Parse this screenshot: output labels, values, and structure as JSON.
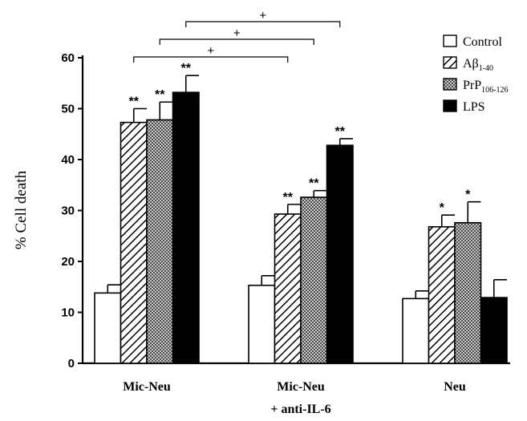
{
  "chart_data": {
    "type": "bar",
    "ylabel": "% Cell death",
    "ylim": [
      0,
      60
    ],
    "yticks": [
      0,
      10,
      20,
      30,
      40,
      50,
      60
    ],
    "groups": [
      {
        "label_lines": [
          "Mic-Neu"
        ]
      },
      {
        "label_lines": [
          "Mic-Neu",
          "+ anti-IL-6"
        ]
      },
      {
        "label_lines": [
          "Neu"
        ]
      }
    ],
    "series": [
      {
        "name": "Control",
        "name_sub": "",
        "pattern": "white",
        "values": [
          13.8,
          15.3,
          12.7
        ],
        "errors": [
          1.6,
          1.9,
          1.5
        ],
        "significance": [
          "",
          "",
          ""
        ]
      },
      {
        "name": "Aβ",
        "name_sub": "1-40",
        "pattern": "hatch",
        "values": [
          47.3,
          29.3,
          26.8
        ],
        "errors": [
          2.7,
          1.9,
          2.3
        ],
        "significance": [
          "**",
          "**",
          "*"
        ]
      },
      {
        "name": "PrP",
        "name_sub": "106-126",
        "pattern": "crosshatch",
        "values": [
          47.8,
          32.6,
          27.6
        ],
        "errors": [
          3.5,
          1.3,
          4.1
        ],
        "significance": [
          "**",
          "**",
          "*"
        ]
      },
      {
        "name": "LPS",
        "name_sub": "",
        "pattern": "black",
        "values": [
          53.2,
          42.8,
          12.9
        ],
        "errors": [
          3.3,
          1.3,
          3.5
        ],
        "significance": [
          "**",
          "**",
          ""
        ]
      }
    ],
    "comparisons": [
      {
        "from_series": 1,
        "to_series": 1,
        "from_group": 0,
        "to_group": 1,
        "mark": "+"
      },
      {
        "from_series": 2,
        "to_series": 2,
        "from_group": 0,
        "to_group": 1,
        "mark": "+"
      },
      {
        "from_series": 3,
        "to_series": 3,
        "from_group": 0,
        "to_group": 1,
        "mark": "+"
      }
    ],
    "legend_position": "top-right"
  }
}
